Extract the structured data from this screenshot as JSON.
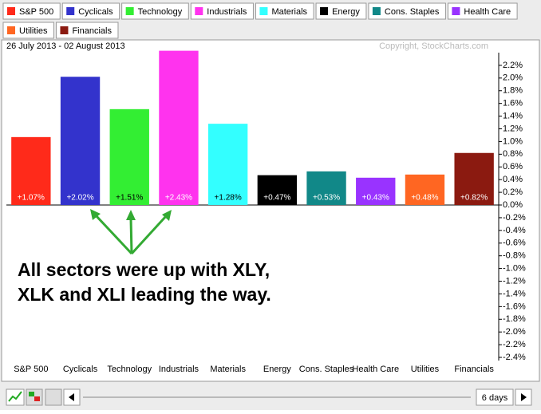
{
  "chart_data": {
    "type": "bar",
    "subtitle": "26 July 2013 - 02 August 2013",
    "copyright": "Copyright, StockCharts.com",
    "categories": [
      "S&P 500",
      "Cyclicals",
      "Technology",
      "Industrials",
      "Materials",
      "Energy",
      "Cons. Staples",
      "Health Care",
      "Utilities",
      "Financials"
    ],
    "values": [
      1.07,
      2.02,
      1.51,
      2.43,
      1.28,
      0.47,
      0.53,
      0.43,
      0.48,
      0.82
    ],
    "value_labels": [
      "+1.07%",
      "+2.02%",
      "+1.51%",
      "+2.43%",
      "+1.28%",
      "+0.47%",
      "+0.53%",
      "+0.43%",
      "+0.48%",
      "+0.82%"
    ],
    "colors": [
      "#ff2a1a",
      "#3333cc",
      "#33ee33",
      "#ff33ee",
      "#33ffff",
      "#000000",
      "#118888",
      "#9933ff",
      "#ff6622",
      "#8b1a10"
    ],
    "ylim": [
      -2.45,
      2.4
    ],
    "yticks": [
      {
        "value": 2.2,
        "label": "2.2%"
      },
      {
        "value": 2.0,
        "label": "2.0%"
      },
      {
        "value": 1.8,
        "label": "1.8%"
      },
      {
        "value": 1.6,
        "label": "1.6%"
      },
      {
        "value": 1.4,
        "label": "1.4%"
      },
      {
        "value": 1.2,
        "label": "1.2%"
      },
      {
        "value": 1.0,
        "label": "1.0%"
      },
      {
        "value": 0.8,
        "label": "0.8%"
      },
      {
        "value": 0.6,
        "label": "0.6%"
      },
      {
        "value": 0.4,
        "label": "0.4%"
      },
      {
        "value": 0.2,
        "label": "0.2%"
      },
      {
        "value": 0,
        "label": "0.0%"
      },
      {
        "value": -0.2,
        "label": "-0.2%"
      },
      {
        "value": -0.4,
        "label": "-0.4%"
      },
      {
        "value": -0.6,
        "label": "-0.6%"
      },
      {
        "value": -0.8,
        "label": "-0.8%"
      },
      {
        "value": -1.0,
        "label": "-1.0%"
      },
      {
        "value": -1.2,
        "label": "-1.2%"
      },
      {
        "value": -1.4,
        "label": "-1.4%"
      },
      {
        "value": -1.6,
        "label": "-1.6%"
      },
      {
        "value": -1.8,
        "label": "-1.8%"
      },
      {
        "value": -2.0,
        "label": "-2.0%"
      },
      {
        "value": -2.2,
        "label": "-2.2%"
      },
      {
        "value": -2.4,
        "label": "-2.4%"
      }
    ],
    "annotation": [
      "All sectors were up with XLY,",
      "XLK and XLI leading the way."
    ]
  },
  "toolbar": {
    "period": "6 days"
  }
}
